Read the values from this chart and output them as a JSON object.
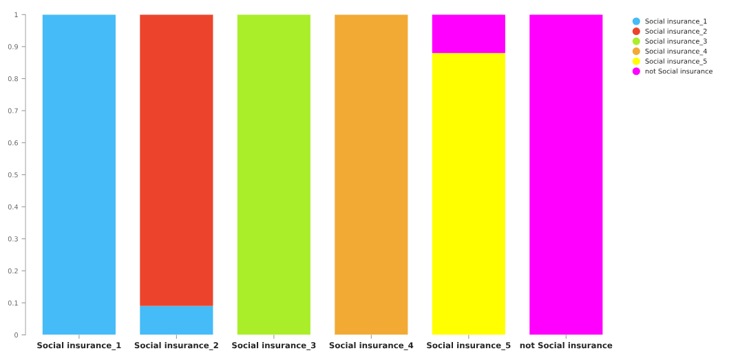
{
  "chart_data": {
    "type": "bar",
    "stacked": true,
    "categories": [
      "Social insurance_1",
      "Social insurance_2",
      "Social insurance_3",
      "Social insurance_4",
      "Social insurance_5",
      "not Social insurance"
    ],
    "series": [
      {
        "name": "Social insurance_1",
        "color": "#45bbf8",
        "values": [
          1,
          0.09,
          0,
          0,
          0,
          0
        ]
      },
      {
        "name": "Social insurance_2",
        "color": "#ec442c",
        "values": [
          0,
          0.91,
          0,
          0,
          0,
          0
        ]
      },
      {
        "name": "Social insurance_3",
        "color": "#aaee2a",
        "values": [
          0,
          0,
          1,
          0,
          0,
          0
        ]
      },
      {
        "name": "Social insurance_4",
        "color": "#f2aa35",
        "values": [
          0,
          0,
          0,
          1,
          0,
          0
        ]
      },
      {
        "name": "Social insurance_5",
        "color": "#ffff00",
        "values": [
          0,
          0,
          0,
          0,
          0.88,
          0
        ]
      },
      {
        "name": "not Social insurance",
        "color": "#ff00ff",
        "values": [
          0,
          0,
          0,
          0,
          0.12,
          1
        ]
      }
    ],
    "ylim": [
      0,
      1
    ],
    "yticks": [
      0,
      0.1,
      0.2,
      0.3,
      0.4,
      0.5,
      0.6,
      0.7,
      0.8,
      0.9,
      1
    ],
    "grid": false,
    "legend": "top right",
    "marker": "circle"
  }
}
